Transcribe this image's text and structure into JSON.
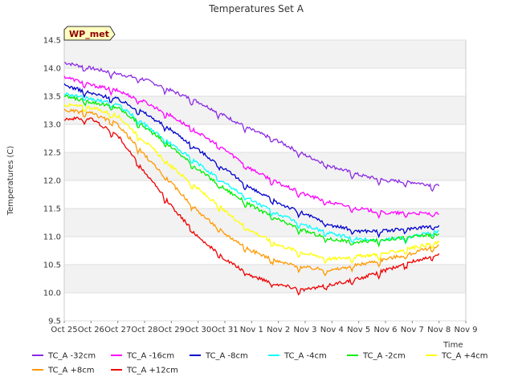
{
  "chart_data": {
    "type": "line",
    "title": "Temperatures Set A",
    "xlabel": "Time",
    "ylabel": "Temperatures (C)",
    "badge": "WP_met",
    "ylim": [
      9.5,
      14.5
    ],
    "xlim": [
      "Oct 25",
      "Nov 9"
    ],
    "yticks": [
      "9.5",
      "10.0",
      "10.5",
      "11.0",
      "11.5",
      "12.0",
      "12.5",
      "13.0",
      "13.5",
      "14.0",
      "14.5"
    ],
    "xticks": [
      "Oct 25",
      "Oct 26",
      "Oct 27",
      "Oct 28",
      "Oct 29",
      "Oct 30",
      "Oct 31",
      "Nov 1",
      "Nov 2",
      "Nov 3",
      "Nov 4",
      "Nov 5",
      "Nov 6",
      "Nov 7",
      "Nov 8",
      "Nov 9"
    ],
    "grid": "horizontal bands",
    "legend_position": "bottom",
    "x": [
      "Oct 25",
      "Oct 26",
      "Oct 27",
      "Oct 28",
      "Oct 29",
      "Oct 30",
      "Oct 31",
      "Nov 1",
      "Nov 2",
      "Nov 3",
      "Nov 4",
      "Nov 5",
      "Nov 6",
      "Nov 7",
      "Nov 8"
    ],
    "series": [
      {
        "name": "TC_A -32cm",
        "color": "#8a2be2",
        "values": [
          14.1,
          14.0,
          13.9,
          13.8,
          13.6,
          13.4,
          13.15,
          12.9,
          12.7,
          12.45,
          12.25,
          12.1,
          12.0,
          11.97,
          11.9
        ]
      },
      {
        "name": "TC_A -16cm",
        "color": "#ff00ff",
        "values": [
          13.85,
          13.7,
          13.6,
          13.4,
          13.15,
          12.85,
          12.55,
          12.2,
          11.95,
          11.75,
          11.6,
          11.5,
          11.42,
          11.42,
          11.4
        ]
      },
      {
        "name": "TC_A -8cm",
        "color": "#0000cd",
        "values": [
          13.7,
          13.55,
          13.45,
          13.2,
          12.9,
          12.55,
          12.2,
          11.85,
          11.6,
          11.4,
          11.2,
          11.1,
          11.1,
          11.15,
          11.2
        ]
      },
      {
        "name": "TC_A -4cm",
        "color": "#00ffff",
        "values": [
          13.55,
          13.45,
          13.35,
          13.0,
          12.65,
          12.3,
          11.95,
          11.65,
          11.4,
          11.2,
          11.05,
          10.95,
          10.95,
          11.0,
          11.1
        ]
      },
      {
        "name": "TC_A -2cm",
        "color": "#00ee00",
        "values": [
          13.5,
          13.4,
          13.3,
          12.95,
          12.6,
          12.2,
          11.85,
          11.55,
          11.3,
          11.1,
          10.95,
          10.9,
          10.95,
          11.0,
          11.05
        ]
      },
      {
        "name": "TC_A +4cm",
        "color": "#ffff00",
        "values": [
          13.35,
          13.3,
          13.15,
          12.7,
          12.25,
          11.85,
          11.45,
          11.1,
          10.85,
          10.7,
          10.6,
          10.65,
          10.7,
          10.8,
          10.9
        ]
      },
      {
        "name": "TC_A +8cm",
        "color": "#ff9900",
        "values": [
          13.25,
          13.2,
          13.0,
          12.45,
          11.95,
          11.45,
          11.05,
          10.75,
          10.55,
          10.45,
          10.4,
          10.5,
          10.6,
          10.7,
          10.85
        ]
      },
      {
        "name": "TC_A +12cm",
        "color": "#ee0000",
        "values": [
          13.1,
          13.1,
          12.8,
          12.15,
          11.55,
          11.0,
          10.6,
          10.3,
          10.15,
          10.05,
          10.15,
          10.25,
          10.4,
          10.55,
          10.7
        ]
      }
    ]
  }
}
